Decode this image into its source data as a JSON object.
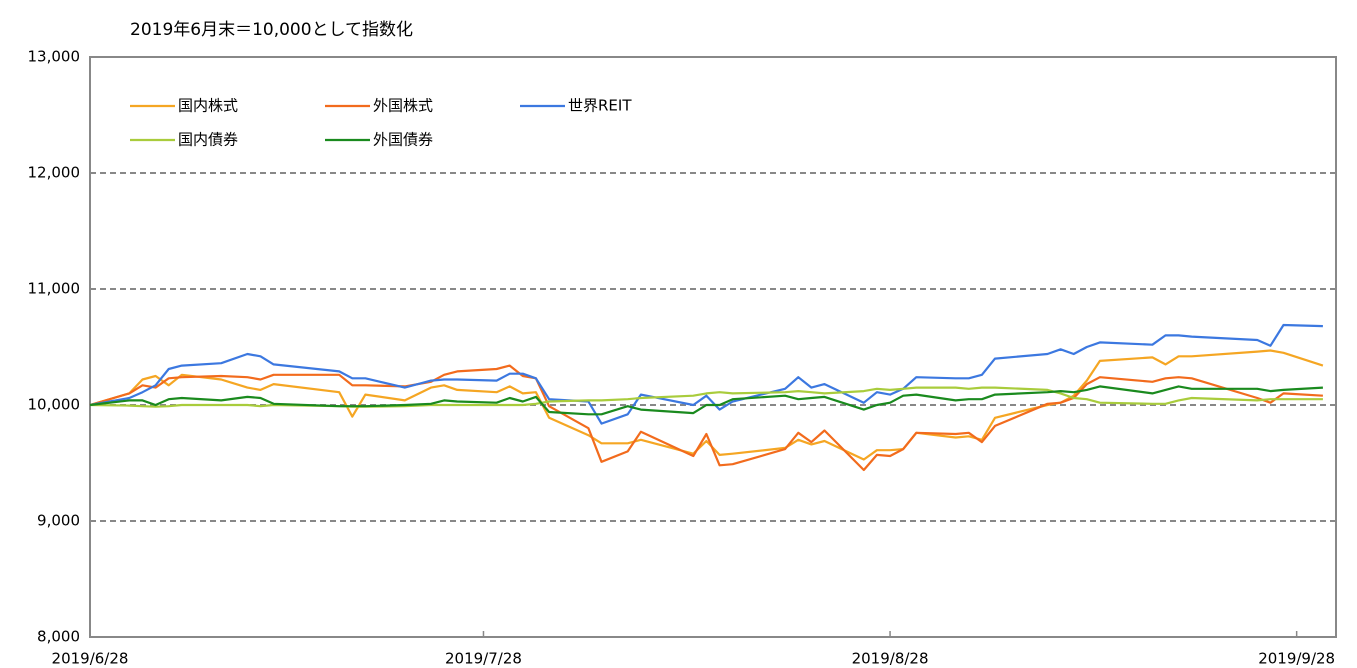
{
  "chart_data": {
    "type": "line",
    "title": "2019年6月末＝10,000として指数化",
    "x": [
      "2019/6/28",
      "2019/7/1",
      "2019/7/2",
      "2019/7/3",
      "2019/7/4",
      "2019/7/5",
      "2019/7/8",
      "2019/7/10",
      "2019/7/11",
      "2019/7/12",
      "2019/7/17",
      "2019/7/18",
      "2019/7/19",
      "2019/7/22",
      "2019/7/24",
      "2019/7/25",
      "2019/7/26",
      "2019/7/29",
      "2019/7/30",
      "2019/7/31",
      "2019/8/1",
      "2019/8/2",
      "2019/8/5",
      "2019/8/6",
      "2019/8/8",
      "2019/8/9",
      "2019/8/13",
      "2019/8/14",
      "2019/8/15",
      "2019/8/16",
      "2019/8/20",
      "2019/8/21",
      "2019/8/22",
      "2019/8/23",
      "2019/8/26",
      "2019/8/27",
      "2019/8/28",
      "2019/8/29",
      "2019/8/30",
      "2019/9/2",
      "2019/9/3",
      "2019/9/4",
      "2019/9/5",
      "2019/9/9",
      "2019/9/10",
      "2019/9/11",
      "2019/9/12",
      "2019/9/13",
      "2019/9/17",
      "2019/9/18",
      "2019/9/19",
      "2019/9/20",
      "2019/9/25",
      "2019/9/26",
      "2019/9/27",
      "2019/9/30"
    ],
    "series": [
      {
        "name": "国内株式",
        "color": "#f5a623",
        "values": [
          10000,
          10100,
          10220,
          10250,
          10170,
          10260,
          10220,
          10150,
          10130,
          10180,
          10110,
          9900,
          10090,
          10040,
          10150,
          10170,
          10130,
          10110,
          10160,
          10100,
          10110,
          9890,
          9740,
          9670,
          9670,
          9700,
          9580,
          9690,
          9570,
          9580,
          9630,
          9700,
          9660,
          9690,
          9530,
          9610,
          9610,
          9620,
          9760,
          9720,
          9730,
          9700,
          9890,
          10000,
          10020,
          10080,
          10210,
          10380,
          10410,
          10350,
          10420,
          10420,
          10460,
          10470,
          10450,
          10340
        ]
      },
      {
        "name": "外国株式",
        "color": "#f26b1d",
        "values": [
          10000,
          10100,
          10170,
          10150,
          10230,
          10240,
          10250,
          10240,
          10220,
          10260,
          10260,
          10170,
          10170,
          10160,
          10200,
          10260,
          10290,
          10310,
          10340,
          10250,
          10230,
          9990,
          9800,
          9510,
          9600,
          9770,
          9560,
          9750,
          9480,
          9490,
          9620,
          9760,
          9680,
          9780,
          9440,
          9570,
          9560,
          9620,
          9760,
          9750,
          9760,
          9680,
          9820,
          10010,
          10020,
          10060,
          10180,
          10240,
          10200,
          10230,
          10240,
          10230,
          10060,
          10020,
          10100,
          10080
        ]
      },
      {
        "name": "世界REIT",
        "color": "#3c78e0",
        "values": [
          10000,
          10060,
          10110,
          10170,
          10310,
          10340,
          10360,
          10440,
          10420,
          10350,
          10290,
          10230,
          10230,
          10150,
          10210,
          10220,
          10220,
          10210,
          10270,
          10270,
          10230,
          10050,
          10030,
          9840,
          9920,
          10090,
          10000,
          10080,
          9960,
          10030,
          10140,
          10240,
          10150,
          10180,
          10020,
          10110,
          10090,
          10140,
          10240,
          10230,
          10230,
          10260,
          10400,
          10440,
          10480,
          10440,
          10500,
          10540,
          10520,
          10600,
          10600,
          10590,
          10560,
          10510,
          10690,
          10680
        ]
      },
      {
        "name": "国内債券",
        "color": "#a9cc3c",
        "values": [
          10000,
          9995,
          9990,
          9985,
          9990,
          10000,
          10000,
          10000,
          9990,
          10000,
          9990,
          9985,
          9985,
          9990,
          10000,
          10000,
          10000,
          10000,
          10000,
          10000,
          10010,
          10030,
          10040,
          10040,
          10050,
          10060,
          10080,
          10100,
          10110,
          10100,
          10110,
          10120,
          10110,
          10100,
          10120,
          10140,
          10130,
          10140,
          10150,
          10150,
          10140,
          10150,
          10150,
          10130,
          10100,
          10060,
          10050,
          10020,
          10010,
          10010,
          10040,
          10060,
          10040,
          10050,
          10050,
          10050
        ]
      },
      {
        "name": "外国債券",
        "color": "#1a8a1e",
        "values": [
          10000,
          10040,
          10040,
          10000,
          10050,
          10060,
          10040,
          10070,
          10060,
          10010,
          9990,
          9990,
          9990,
          10000,
          10010,
          10040,
          10030,
          10020,
          10060,
          10030,
          10070,
          9940,
          9920,
          9920,
          9990,
          9960,
          9930,
          10000,
          10000,
          10050,
          10080,
          10050,
          10060,
          10070,
          9960,
          10000,
          10020,
          10080,
          10090,
          10040,
          10050,
          10050,
          10090,
          10110,
          10120,
          10110,
          10130,
          10160,
          10100,
          10130,
          10160,
          10140,
          10140,
          10120,
          10130,
          10150
        ]
      }
    ],
    "xlim": [
      "2019/6/28",
      "2019/10/1"
    ],
    "xticks": [
      "2019/6/28",
      "2019/7/28",
      "2019/8/28",
      "2019/9/28"
    ],
    "ylim": [
      8000,
      13000
    ],
    "yticks": [
      {
        "value": 8000,
        "label": "8,000"
      },
      {
        "value": 9000,
        "label": "9,000"
      },
      {
        "value": 10000,
        "label": "10,000"
      },
      {
        "value": 11000,
        "label": "11,000"
      },
      {
        "value": 12000,
        "label": "12,000"
      },
      {
        "value": 13000,
        "label": "13,000"
      }
    ],
    "grid": true,
    "legend": "upper left"
  }
}
